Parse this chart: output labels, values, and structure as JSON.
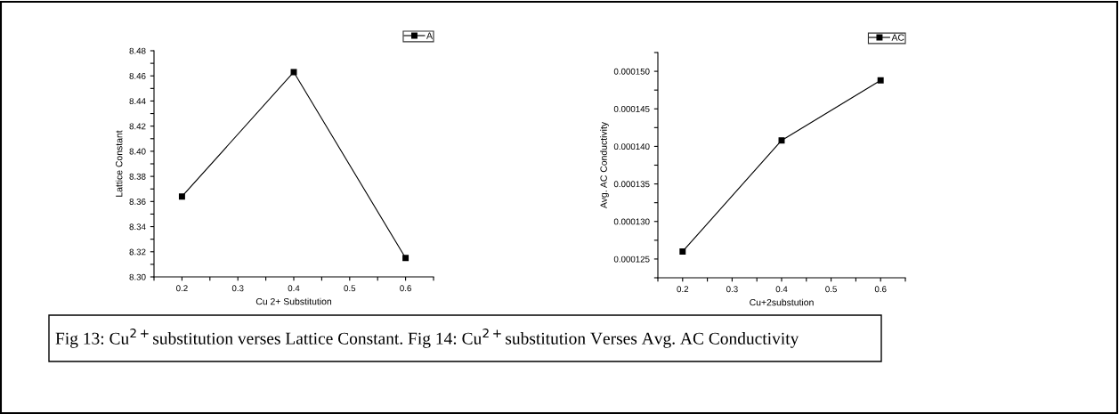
{
  "chart_data": [
    {
      "type": "line",
      "xlabel": "Cu 2+ Substitution",
      "ylabel": "Lattice Constant",
      "x": [
        0.2,
        0.4,
        0.6
      ],
      "series": [
        {
          "name": "A",
          "color": "#000000",
          "values": [
            8.364,
            8.463,
            8.315
          ]
        }
      ],
      "xlim": [
        0.15,
        0.65
      ],
      "xticks": [
        {
          "value": 0.15,
          "label": null
        },
        0.2,
        {
          "value": 0.25,
          "label": null
        },
        0.3,
        {
          "value": 0.35,
          "label": null
        },
        0.4,
        {
          "value": 0.45,
          "label": null
        },
        0.5,
        {
          "value": 0.55,
          "label": null
        },
        0.6,
        {
          "value": 0.65,
          "label": null
        }
      ],
      "ylim": [
        8.3,
        8.48
      ],
      "yticks": [
        {
          "value": 8.3,
          "label": "8.30"
        },
        {
          "value": 8.31,
          "label": null
        },
        8.32,
        {
          "value": 8.33,
          "label": null
        },
        8.34,
        {
          "value": 8.35,
          "label": null
        },
        8.36,
        {
          "value": 8.37,
          "label": null
        },
        {
          "value": 8.38,
          "label": "8.38"
        },
        {
          "value": 8.39,
          "label": null
        },
        {
          "value": 8.4,
          "label": "8.40"
        },
        {
          "value": 8.41,
          "label": null
        },
        8.42,
        {
          "value": 8.43,
          "label": null
        },
        8.44,
        {
          "value": 8.45,
          "label": null
        },
        8.46,
        {
          "value": 8.47,
          "label": null
        },
        8.48
      ],
      "marker": "square",
      "line_style": "solid",
      "grid": false,
      "legend": "top right",
      "annotations": [
        "Fig 13: Cu$^{2+}$substitution verses Lattice Constant. Fig 14: Cu$^{2+}$substitution Verses Avg. AC Conductivity"
      ]
    },
    {
      "type": "line",
      "xlabel": "Cu+2substution",
      "ylabel": "Avg. AC Conductivity",
      "x": [
        0.2,
        0.4,
        0.6
      ],
      "series": [
        {
          "name": "AC",
          "color": "#000000",
          "values": [
            0.000126,
            0.0001408,
            0.0001488
          ]
        }
      ],
      "xlim": [
        0.15,
        0.65
      ],
      "xticks": [
        {
          "value": 0.15,
          "label": null
        },
        0.2,
        {
          "value": 0.25,
          "label": null
        },
        0.3,
        {
          "value": 0.35,
          "label": null
        },
        0.4,
        {
          "value": 0.45,
          "label": null
        },
        0.5,
        {
          "value": 0.55,
          "label": null
        },
        0.6,
        {
          "value": 0.65,
          "label": null
        }
      ],
      "ylim": [
        0.0001225,
        0.0001525
      ],
      "yticks": [
        {
          "value": 0.0001225,
          "label": null
        },
        {
          "value": 0.000125,
          "label": "0.000125"
        },
        {
          "value": 0.0001275,
          "label": null
        },
        {
          "value": 0.00013,
          "label": "0.000130"
        },
        {
          "value": 0.0001325,
          "label": null
        },
        {
          "value": 0.000135,
          "label": "0.000135"
        },
        {
          "value": 0.0001375,
          "label": null
        },
        {
          "value": 0.00014,
          "label": "0.000140"
        },
        {
          "value": 0.0001425,
          "label": null
        },
        {
          "value": 0.000145,
          "label": "0.000145"
        },
        {
          "value": 0.0001475,
          "label": null
        },
        {
          "value": 0.00015,
          "label": "0.000150"
        },
        {
          "value": 0.0001525,
          "label": null
        }
      ],
      "marker": "square",
      "line_style": "solid",
      "grid": false,
      "legend": "top right"
    }
  ]
}
